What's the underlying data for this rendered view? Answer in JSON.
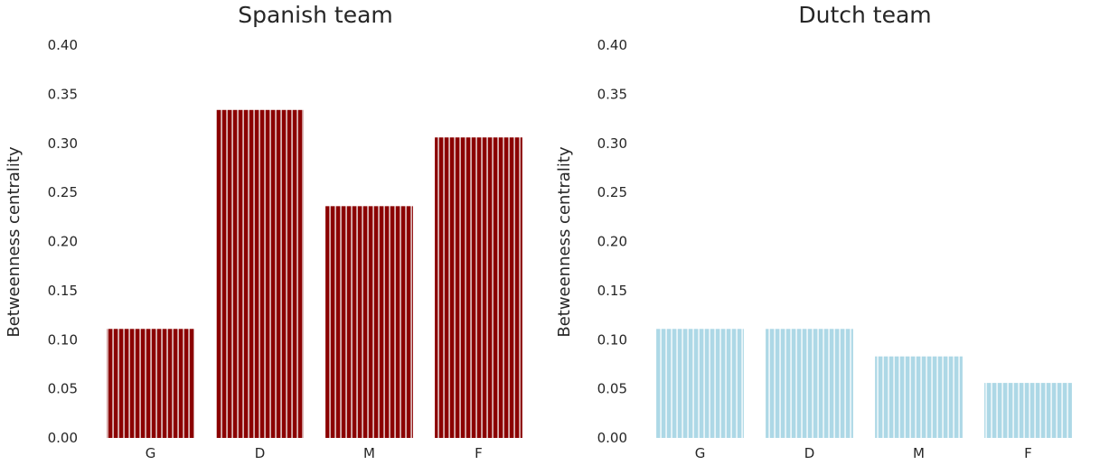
{
  "chart_data": [
    {
      "type": "bar",
      "title": "Spanish team",
      "ylabel": "Betweenness centrality",
      "xlabel": "",
      "categories": [
        "G",
        "D",
        "M",
        "F"
      ],
      "values": [
        0.111,
        0.334,
        0.236,
        0.306
      ],
      "ylim": [
        0,
        0.4
      ],
      "yticks": [
        "0.00",
        "0.05",
        "0.10",
        "0.15",
        "0.20",
        "0.25",
        "0.30",
        "0.35",
        "0.40"
      ],
      "bar_color": "#8b0000",
      "stripe_color": "#d9b3b3",
      "grid": false
    },
    {
      "type": "bar",
      "title": "Dutch team",
      "ylabel": "Betweenness centrality",
      "xlabel": "",
      "categories": [
        "G",
        "D",
        "M",
        "F"
      ],
      "values": [
        0.111,
        0.111,
        0.083,
        0.056
      ],
      "ylim": [
        0,
        0.4
      ],
      "yticks": [
        "0.00",
        "0.05",
        "0.10",
        "0.15",
        "0.20",
        "0.25",
        "0.30",
        "0.35",
        "0.40"
      ],
      "bar_color": "#add8e6",
      "stripe_color": "#e8f4f8",
      "grid": false
    }
  ]
}
